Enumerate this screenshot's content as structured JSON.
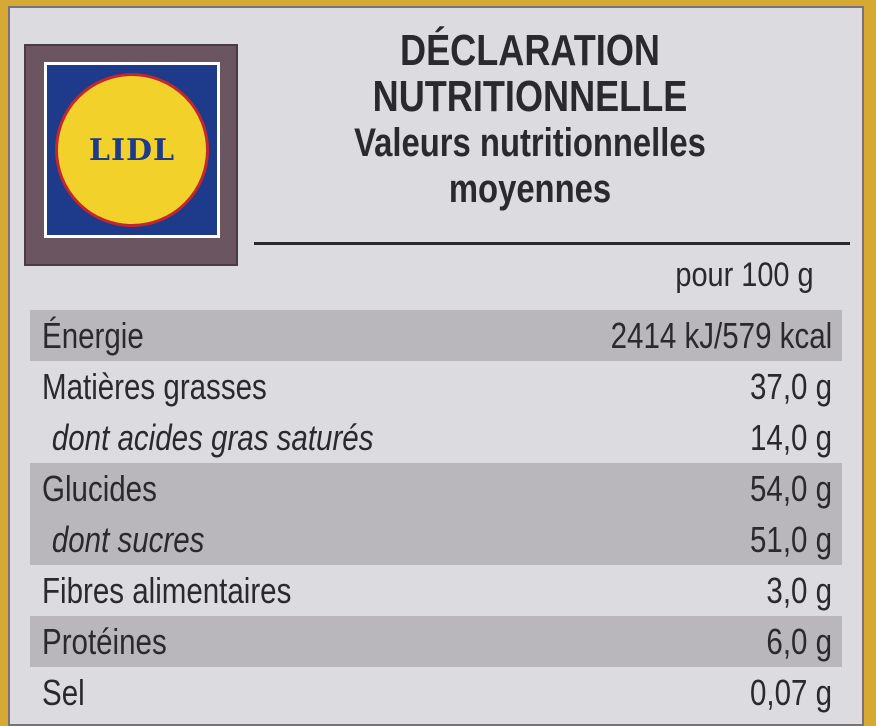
{
  "logo": {
    "text": "LIDL",
    "colors": {
      "blue": "#1e3a8a",
      "yellow": "#f2d22a",
      "red": "#c2262e"
    }
  },
  "title": {
    "line1": "DÉCLARATION",
    "line2": "NUTRITIONNELLE",
    "subtitle1": "Valeurs nutritionnelles",
    "subtitle2": "moyennes"
  },
  "table": {
    "column_header": "pour 100 g",
    "rows": [
      {
        "name": "Énergie",
        "value": "2414 kJ/579 kcal"
      },
      {
        "name": "Matières grasses",
        "value": "37,0 g"
      },
      {
        "name": "dont acides gras saturés",
        "value": "14,0 g"
      },
      {
        "name": "Glucides",
        "value": "54,0 g"
      },
      {
        "name": "dont sucres",
        "value": "51,0 g"
      },
      {
        "name": "Fibres alimentaires",
        "value": "3,0 g"
      },
      {
        "name": "Protéines",
        "value": "6,0 g"
      },
      {
        "name": "Sel",
        "value": "0,07 g"
      }
    ]
  }
}
